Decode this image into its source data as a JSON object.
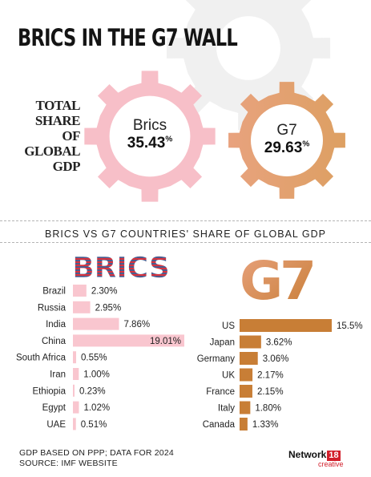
{
  "header": {
    "title": "BRICS IN THE G7 WALL",
    "share_label": [
      "TOTAL",
      "SHARE OF",
      "GLOBAL",
      "GDP"
    ]
  },
  "totals": {
    "brics": {
      "name": "Brics",
      "value": "35.43",
      "unit": "%"
    },
    "g7": {
      "name": "G7",
      "value": "29.63",
      "unit": "%"
    }
  },
  "colors": {
    "brics_bar": "#f9c6cf",
    "brics_gear": "#f7bfc8",
    "g7_bar": "#c87e36",
    "g7_gear_light": "#e8a27e",
    "g7_gear_dark": "#dda062",
    "logo_blue": "#4a5d8f",
    "logo_red": "#d9343e"
  },
  "subtitle": "BRICS VS G7 COUNTRIES' SHARE OF GLOBAL GDP",
  "chart_data": [
    {
      "type": "bar",
      "orientation": "horizontal",
      "logo_text": "BRICS",
      "categories": [
        "Brazil",
        "Russia",
        "India",
        "China",
        "South Africa",
        "Iran",
        "Ethiopia",
        "Egypt",
        "UAE"
      ],
      "values": [
        2.3,
        2.95,
        7.86,
        19.01,
        0.55,
        1.0,
        0.23,
        1.02,
        0.51
      ],
      "value_labels": [
        "2.30%",
        "2.95%",
        "7.86%",
        "19.01%",
        "0.55%",
        "1.00%",
        "0.23%",
        "1.02%",
        "0.51%"
      ],
      "unit": "%"
    },
    {
      "type": "bar",
      "orientation": "horizontal",
      "logo_text": "G7",
      "categories": [
        "US",
        "Japan",
        "Germany",
        "UK",
        "France",
        "Italy",
        "Canada"
      ],
      "values": [
        15.5,
        3.62,
        3.06,
        2.17,
        2.15,
        1.8,
        1.33
      ],
      "value_labels": [
        "15.5%",
        "3.62%",
        "3.06%",
        "2.17%",
        "2.15%",
        "1.80%",
        "1.33%"
      ],
      "unit": "%"
    }
  ],
  "footnote": [
    "GDP BASED ON PPP; DATA FOR 2024",
    "SOURCE: IMF WEBSITE"
  ],
  "brand": {
    "name": "Network",
    "number": "18",
    "sub": "creative"
  }
}
